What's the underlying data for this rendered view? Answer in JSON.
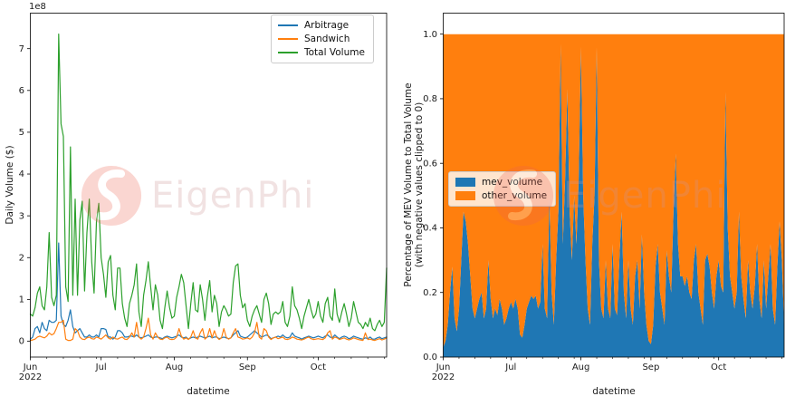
{
  "page": {
    "background": "#ffffff"
  },
  "watermark": {
    "text": "EigenPhi"
  },
  "chart_data": [
    {
      "type": "line",
      "title": "",
      "xlabel": "datetime",
      "ylabel": "Daily Volume ($)",
      "y_offset_text": "1e8",
      "y_unit": "values are in 1e8 US dollars",
      "x_start": "2022-06-01",
      "x_freq": "daily",
      "x_tick_labels": [
        "Jun",
        "Jul",
        "Aug",
        "Sep",
        "Oct"
      ],
      "x_first_tick_year": "2022",
      "x_tick_day_index": [
        0,
        30,
        61,
        92,
        122
      ],
      "x_minor_tick_day_index": [
        7,
        14,
        21,
        28,
        37,
        44,
        51,
        58,
        68,
        75,
        82,
        89,
        99,
        106,
        113,
        120,
        129,
        136,
        143,
        150
      ],
      "yticks": [
        0,
        1,
        2,
        3,
        4,
        5,
        6,
        7
      ],
      "ylim": [
        -0.38,
        7.85
      ],
      "grid": false,
      "legend_position": "upper right",
      "series": [
        {
          "name": "Arbitrage",
          "color": "#1f77b4",
          "values": [
            0.05,
            0.1,
            0.3,
            0.35,
            0.2,
            0.45,
            0.3,
            0.25,
            0.5,
            0.45,
            0.45,
            0.5,
            2.35,
            0.6,
            0.4,
            0.35,
            0.5,
            0.75,
            0.35,
            0.2,
            0.25,
            0.3,
            0.2,
            0.1,
            0.1,
            0.15,
            0.1,
            0.1,
            0.15,
            0.1,
            0.3,
            0.3,
            0.28,
            0.1,
            0.1,
            0.05,
            0.1,
            0.25,
            0.25,
            0.2,
            0.1,
            0.1,
            0.12,
            0.12,
            0.1,
            0.15,
            0.1,
            0.08,
            0.1,
            0.12,
            0.15,
            0.1,
            0.08,
            0.1,
            0.1,
            0.08,
            0.06,
            0.1,
            0.12,
            0.1,
            0.08,
            0.1,
            0.12,
            0.15,
            0.1,
            0.08,
            0.1,
            0.05,
            0.08,
            0.1,
            0.08,
            0.1,
            0.12,
            0.1,
            0.08,
            0.1,
            0.12,
            0.08,
            0.1,
            0.1,
            0.06,
            0.08,
            0.1,
            0.08,
            0.06,
            0.08,
            0.15,
            0.2,
            0.25,
            0.12,
            0.1,
            0.08,
            0.1,
            0.15,
            0.2,
            0.25,
            0.2,
            0.15,
            0.1,
            0.12,
            0.15,
            0.12,
            0.06,
            0.08,
            0.1,
            0.12,
            0.1,
            0.15,
            0.1,
            0.08,
            0.1,
            0.2,
            0.12,
            0.1,
            0.08,
            0.05,
            0.08,
            0.1,
            0.12,
            0.1,
            0.08,
            0.1,
            0.12,
            0.1,
            0.08,
            0.12,
            0.15,
            0.1,
            0.08,
            0.15,
            0.1,
            0.06,
            0.1,
            0.12,
            0.1,
            0.06,
            0.08,
            0.12,
            0.1,
            0.08,
            0.06,
            0.05,
            0.08,
            0.06,
            0.1,
            0.05,
            0.05,
            0.08,
            0.1,
            0.06,
            0.08,
            0.1
          ]
        },
        {
          "name": "Sandwich",
          "color": "#ff7f0e",
          "values": [
            0.02,
            0.03,
            0.05,
            0.1,
            0.12,
            0.1,
            0.08,
            0.12,
            0.2,
            0.15,
            0.18,
            0.3,
            0.45,
            0.45,
            0.5,
            0.05,
            0.02,
            0.02,
            0.05,
            0.3,
            0.25,
            0.1,
            0.05,
            0.04,
            0.08,
            0.1,
            0.06,
            0.05,
            0.1,
            0.08,
            0.05,
            0.1,
            0.15,
            0.08,
            0.05,
            0.1,
            0.06,
            0.05,
            0.08,
            0.1,
            0.05,
            0.04,
            0.1,
            0.2,
            0.1,
            0.45,
            0.1,
            0.05,
            0.1,
            0.3,
            0.55,
            0.15,
            0.05,
            0.2,
            0.1,
            0.05,
            0.04,
            0.08,
            0.1,
            0.05,
            0.04,
            0.05,
            0.1,
            0.3,
            0.12,
            0.05,
            0.08,
            0.04,
            0.1,
            0.25,
            0.08,
            0.05,
            0.2,
            0.3,
            0.05,
            0.1,
            0.3,
            0.08,
            0.25,
            0.1,
            0.04,
            0.08,
            0.3,
            0.1,
            0.05,
            0.08,
            0.2,
            0.3,
            0.1,
            0.08,
            0.05,
            0.06,
            0.08,
            0.05,
            0.1,
            0.2,
            0.45,
            0.1,
            0.05,
            0.3,
            0.25,
            0.1,
            0.04,
            0.08,
            0.1,
            0.06,
            0.08,
            0.1,
            0.05,
            0.04,
            0.06,
            0.1,
            0.08,
            0.05,
            0.04,
            0.03,
            0.05,
            0.08,
            0.1,
            0.06,
            0.04,
            0.05,
            0.06,
            0.05,
            0.04,
            0.08,
            0.2,
            0.25,
            0.05,
            0.1,
            0.08,
            0.04,
            0.06,
            0.08,
            0.05,
            0.03,
            0.05,
            0.08,
            0.06,
            0.04,
            0.03,
            0.02,
            0.2,
            0.04,
            0.05,
            0.03,
            0.02,
            0.04,
            0.06,
            0.03,
            0.05,
            0.08
          ]
        },
        {
          "name": "Total Volume",
          "color": "#2ca02c",
          "values": [
            0.65,
            0.6,
            0.8,
            1.15,
            1.3,
            0.85,
            0.75,
            1.3,
            2.6,
            1.05,
            0.85,
            1.1,
            7.35,
            5.2,
            4.9,
            1.3,
            0.95,
            4.65,
            1.1,
            3.4,
            1.1,
            2.9,
            3.35,
            1.2,
            2.6,
            3.4,
            1.9,
            1.15,
            2.85,
            3.3,
            2.0,
            1.6,
            1.05,
            1.9,
            2.05,
            1.1,
            0.75,
            1.75,
            1.75,
            0.9,
            0.55,
            0.35,
            0.9,
            1.1,
            1.35,
            1.85,
            0.7,
            0.35,
            1.1,
            1.45,
            1.9,
            1.3,
            0.75,
            1.35,
            1.1,
            0.5,
            0.3,
            0.8,
            1.2,
            0.8,
            0.55,
            0.6,
            1.05,
            1.3,
            1.6,
            1.4,
            0.85,
            0.3,
            0.9,
            1.4,
            0.75,
            0.7,
            1.35,
            1.0,
            0.5,
            1.05,
            1.45,
            0.7,
            1.1,
            0.9,
            0.35,
            0.7,
            0.85,
            0.75,
            0.6,
            0.65,
            1.4,
            1.8,
            1.85,
            1.1,
            0.8,
            0.9,
            0.5,
            0.35,
            0.6,
            0.75,
            0.85,
            0.65,
            0.45,
            1.0,
            1.15,
            0.9,
            0.4,
            0.65,
            0.7,
            0.65,
            0.7,
            0.95,
            0.45,
            0.35,
            0.6,
            1.3,
            0.85,
            0.75,
            0.55,
            0.3,
            0.6,
            0.8,
            1.0,
            0.75,
            0.55,
            0.65,
            0.95,
            0.6,
            0.45,
            0.9,
            1.05,
            0.6,
            0.5,
            1.25,
            0.65,
            0.45,
            0.7,
            0.9,
            0.65,
            0.35,
            0.55,
            0.95,
            0.7,
            0.45,
            0.4,
            0.3,
            0.45,
            0.35,
            0.55,
            0.3,
            0.25,
            0.4,
            0.5,
            0.35,
            0.45,
            1.75
          ]
        }
      ]
    },
    {
      "type": "stacked_area",
      "title": "",
      "xlabel": "datetime",
      "ylabel_lines": [
        "Percentage of MEV Volume to Total Volume",
        "(with negative values clipped to 0)"
      ],
      "x_start": "2022-06-01",
      "x_freq": "daily",
      "x_tick_labels": [
        "Jun",
        "Jul",
        "Aug",
        "Sep",
        "Oct"
      ],
      "x_first_tick_year": "2022",
      "x_tick_day_index": [
        0,
        30,
        61,
        92,
        122
      ],
      "x_minor_tick_day_index": [
        7,
        14,
        21,
        28,
        37,
        44,
        51,
        58,
        68,
        75,
        82,
        89,
        99,
        106,
        113,
        120,
        129,
        136,
        143,
        150
      ],
      "yticks": [
        "0.0",
        "0.2",
        "0.4",
        "0.6",
        "0.8",
        "1.0"
      ],
      "ylim": [
        0,
        1.065
      ],
      "grid": false,
      "legend_position": "center left",
      "series": [
        {
          "name": "mev_volume",
          "color": "#1f77b4",
          "values": [
            0.03,
            0.05,
            0.1,
            0.2,
            0.28,
            0.12,
            0.08,
            0.15,
            0.3,
            0.45,
            0.42,
            0.35,
            0.25,
            0.15,
            0.12,
            0.15,
            0.18,
            0.2,
            0.12,
            0.15,
            0.3,
            0.18,
            0.12,
            0.15,
            0.13,
            0.18,
            0.15,
            0.1,
            0.12,
            0.15,
            0.17,
            0.15,
            0.18,
            0.15,
            0.07,
            0.06,
            0.1,
            0.15,
            0.17,
            0.19,
            0.18,
            0.19,
            0.15,
            0.17,
            0.35,
            0.15,
            0.12,
            0.5,
            0.2,
            0.1,
            0.3,
            0.45,
            0.97,
            0.35,
            0.55,
            0.83,
            0.45,
            0.3,
            0.5,
            0.35,
            0.55,
            0.96,
            0.5,
            0.3,
            0.15,
            0.1,
            0.35,
            0.5,
            0.96,
            0.3,
            0.15,
            0.12,
            0.3,
            0.15,
            0.12,
            0.35,
            0.15,
            0.13,
            0.3,
            0.45,
            0.2,
            0.12,
            0.3,
            0.15,
            0.1,
            0.25,
            0.3,
            0.15,
            0.38,
            0.2,
            0.1,
            0.05,
            0.04,
            0.1,
            0.28,
            0.35,
            0.2,
            0.15,
            0.1,
            0.33,
            0.25,
            0.2,
            0.45,
            0.63,
            0.35,
            0.25,
            0.25,
            0.22,
            0.25,
            0.2,
            0.18,
            0.3,
            0.35,
            0.2,
            0.15,
            0.1,
            0.3,
            0.32,
            0.28,
            0.2,
            0.15,
            0.25,
            0.3,
            0.22,
            0.2,
            0.82,
            0.4,
            0.25,
            0.2,
            0.15,
            0.2,
            0.45,
            0.25,
            0.18,
            0.12,
            0.3,
            0.2,
            0.15,
            0.22,
            0.35,
            0.18,
            0.12,
            0.3,
            0.15,
            0.25,
            0.35,
            0.15,
            0.1,
            0.28,
            0.42,
            0.3,
            0.1
          ]
        },
        {
          "name": "other_volume",
          "color": "#ff7f0e",
          "derived": "1.0 - mev_volume (stack normalized so each day totals 1.0)"
        }
      ]
    }
  ]
}
